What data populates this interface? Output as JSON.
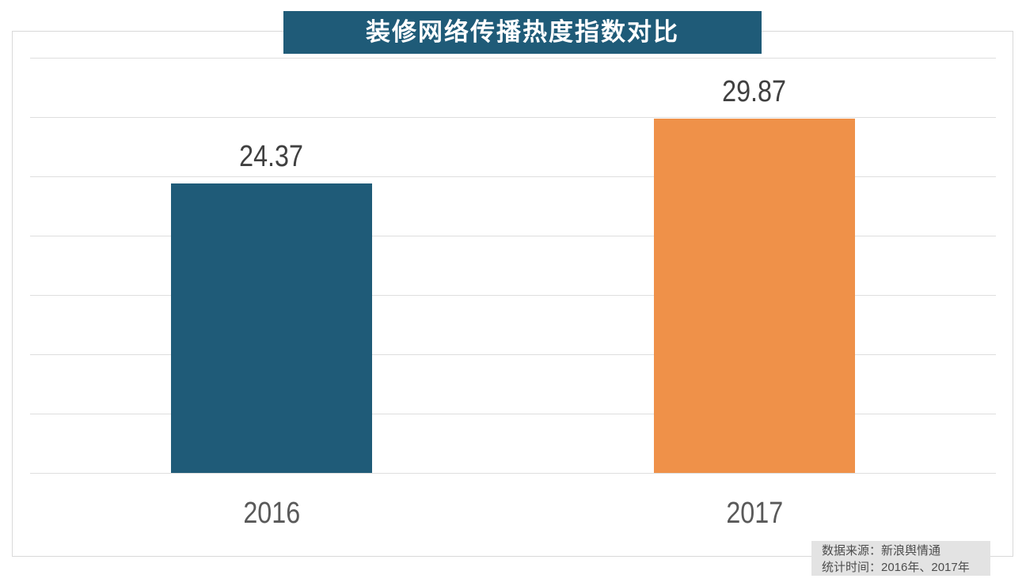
{
  "title": {
    "text": "装修网络传播热度指数对比"
  },
  "chart_data": {
    "type": "bar",
    "title": "装修网络传播热度指数对比",
    "categories": [
      "2016",
      "2017"
    ],
    "values": [
      24.37,
      29.87
    ],
    "bar_colors": [
      "#1f5b78",
      "#ef9149"
    ],
    "value_label_color": "#404040",
    "xlabel": "",
    "ylabel": "",
    "ylim": [
      0,
      35
    ],
    "gridline_step": 5,
    "grid": "horizontal",
    "gridline_color": "#dedede",
    "legend": "none",
    "y_tick_labels_visible": false
  },
  "footer": {
    "line1": "数据来源：新浪舆情通",
    "line2": "统计时间：2016年、2017年"
  },
  "colors": {
    "title_background": "#1f5b78",
    "title_text": "#ffffff",
    "panel_border": "#d9d9d9",
    "footer_background": "#e3e3e3",
    "footer_text": "#4d4d4d",
    "category_label_text": "#595959"
  }
}
